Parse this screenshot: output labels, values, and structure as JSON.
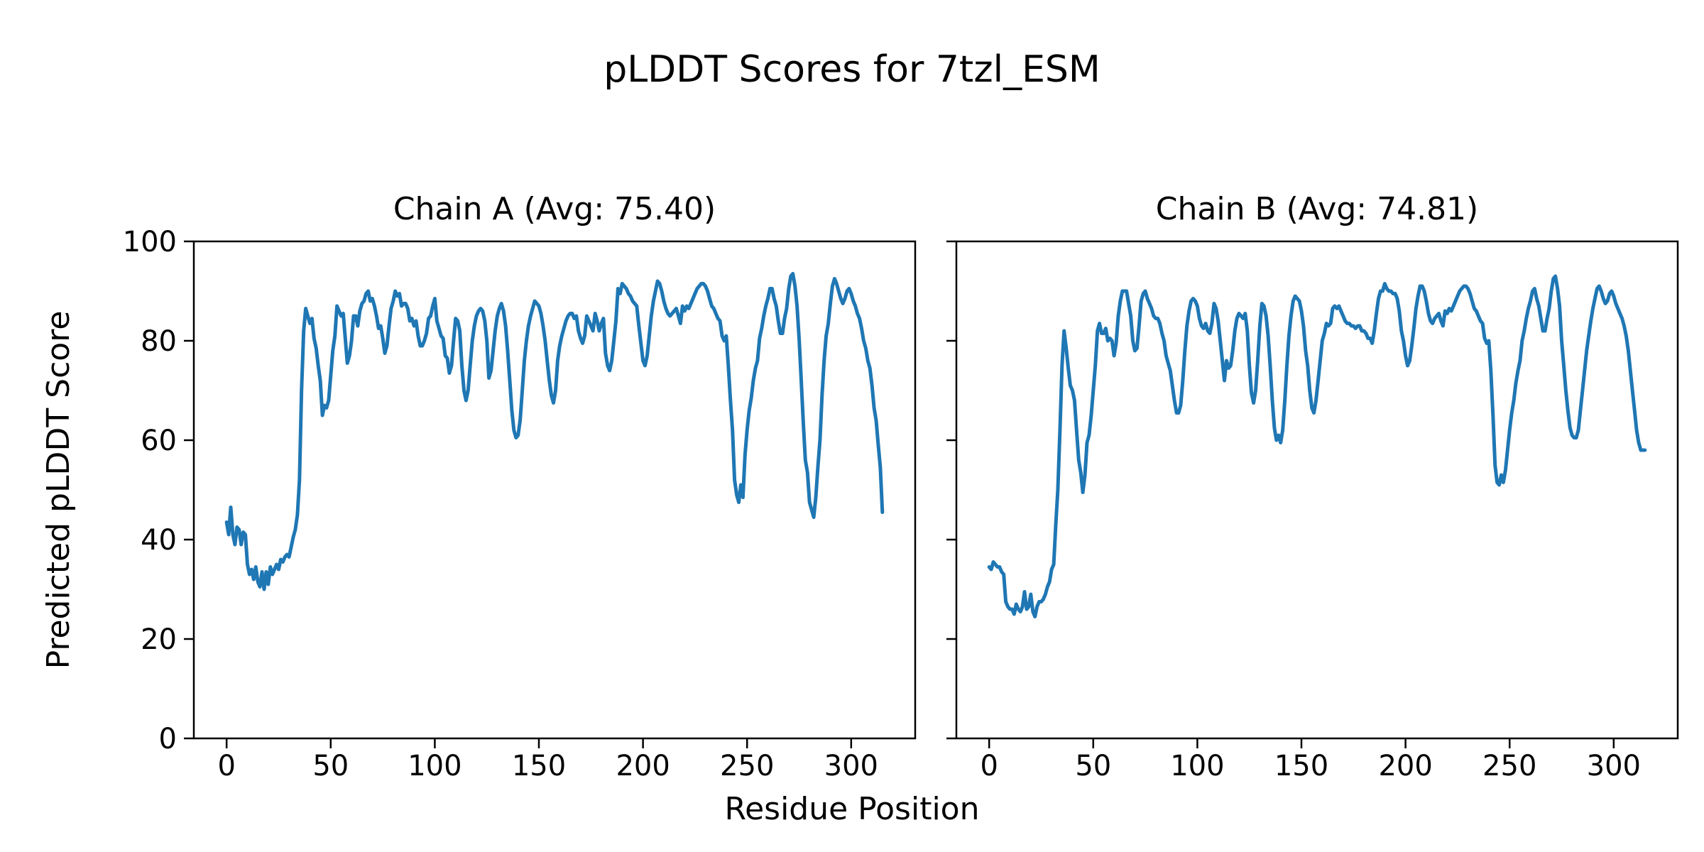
{
  "figure": {
    "suptitle": "pLDDT Scores for 7tzl_ESM",
    "xlabel": "Residue Position",
    "ylabel": "Predicted pLDDT Score",
    "background_color": "#ffffff",
    "line_color": "#1f77b4"
  },
  "chart_data": [
    {
      "type": "line",
      "title": "Chain A (Avg: 75.40)",
      "avg": 75.4,
      "x_start": 0,
      "x_step": 1,
      "x_ticks": [
        0,
        50,
        100,
        150,
        200,
        250,
        300
      ],
      "y_ticks": [
        0,
        20,
        40,
        60,
        80,
        100
      ],
      "xlim": [
        -15.75,
        330.75
      ],
      "ylim": [
        0,
        100
      ],
      "grid": false,
      "values": [
        43.5,
        41,
        46.5,
        41,
        39,
        42.5,
        42,
        39,
        41.5,
        41,
        35,
        33,
        34,
        32,
        34.5,
        31.5,
        30.5,
        33.5,
        30,
        33.5,
        31,
        34.5,
        33,
        34,
        35,
        34,
        36,
        35.5,
        36.5,
        37,
        36.5,
        38.5,
        40.5,
        42,
        45,
        52,
        70,
        82,
        86.5,
        85,
        83.5,
        84.5,
        80.5,
        78.5,
        75,
        72,
        65,
        67,
        66.5,
        68,
        73,
        78,
        81,
        87,
        86,
        85,
        85.5,
        80.5,
        75.5,
        77,
        80,
        85,
        85,
        83,
        86,
        87.5,
        88,
        89.5,
        90,
        88,
        88.5,
        87,
        85,
        82.5,
        83,
        80.5,
        77.5,
        79,
        83,
        86.5,
        88,
        90,
        89,
        89.5,
        87,
        87.5,
        87.5,
        86.5,
        84,
        84.5,
        83,
        84,
        81,
        79,
        79,
        80,
        81.5,
        84.5,
        85,
        87,
        88.5,
        84,
        82.5,
        81,
        80.5,
        77,
        76.5,
        73.5,
        75,
        80,
        84.5,
        84,
        82,
        75,
        70,
        68,
        70,
        75,
        80,
        83,
        85,
        86,
        86.5,
        86,
        84,
        80,
        72.5,
        74,
        78,
        82,
        85,
        86.5,
        87.5,
        86,
        83,
        78,
        72,
        66,
        62,
        60.5,
        61,
        64,
        70,
        76,
        80,
        83,
        85,
        86.5,
        88,
        87.5,
        87,
        85.5,
        83,
        80,
        76,
        72,
        69,
        67.5,
        70,
        76,
        79,
        81,
        82.5,
        84,
        85,
        85.5,
        85.5,
        84.5,
        85,
        82,
        80.5,
        79.5,
        81,
        85,
        84,
        83,
        82,
        85.5,
        84,
        82,
        83.5,
        84.5,
        77.5,
        75,
        74,
        76,
        80,
        84,
        90.5,
        89.5,
        91.5,
        91,
        90.5,
        89.5,
        89,
        88,
        87.5,
        87,
        83,
        79.5,
        76,
        75,
        77,
        81,
        85,
        88,
        90,
        92,
        91.5,
        90,
        88,
        86.5,
        85.5,
        85,
        85.5,
        86,
        86.5,
        85,
        83.5,
        87,
        86,
        87,
        86.5,
        87.5,
        88.5,
        89.5,
        90.5,
        91,
        91.5,
        91.5,
        91,
        90,
        88.5,
        87,
        86.5,
        85.5,
        84.5,
        84,
        81,
        80,
        81,
        75,
        68,
        62,
        52,
        49,
        47.5,
        51,
        48.5,
        57,
        62,
        66,
        68.5,
        72,
        74.5,
        76,
        80.5,
        82.5,
        85,
        87,
        88.5,
        90.5,
        90.5,
        88.5,
        87,
        84,
        81.5,
        81.5,
        84.5,
        86.5,
        90.5,
        93,
        93.5,
        91,
        87,
        80.5,
        72,
        63.5,
        56,
        53.5,
        47.5,
        46,
        44.5,
        48.5,
        54.5,
        60,
        69,
        76,
        81,
        83.5,
        87.5,
        91,
        92.5,
        91.5,
        90,
        88.5,
        87.5,
        88.5,
        90,
        90.5,
        89.5,
        88,
        87,
        85.5,
        84.5,
        82.5,
        80,
        78.5,
        76,
        74.5,
        71,
        66.5,
        64,
        59,
        54.5,
        45.5
      ]
    },
    {
      "type": "line",
      "title": "Chain B (Avg: 74.81)",
      "avg": 74.81,
      "x_start": 0,
      "x_step": 1,
      "x_ticks": [
        0,
        50,
        100,
        150,
        200,
        250,
        300
      ],
      "y_ticks": [
        0,
        20,
        40,
        60,
        80,
        100
      ],
      "xlim": [
        -15.75,
        330.75
      ],
      "ylim": [
        0,
        100
      ],
      "grid": false,
      "values": [
        34.5,
        34,
        35.5,
        35,
        34.5,
        34.5,
        33.5,
        33,
        27.5,
        26.5,
        26,
        26,
        25,
        27,
        26,
        25.5,
        26.5,
        29.5,
        26,
        26.5,
        29,
        25.5,
        24.5,
        26.5,
        27.5,
        27.5,
        28,
        29,
        30.5,
        31.5,
        34,
        35,
        43,
        50,
        62,
        75,
        82,
        78.5,
        74.5,
        71,
        70,
        68,
        62,
        56,
        53.5,
        49.5,
        53,
        59.5,
        61,
        65,
        70,
        75,
        82,
        83.5,
        81.5,
        81.5,
        82.5,
        80,
        80.5,
        80,
        77,
        79.5,
        85,
        88,
        90,
        90,
        90,
        87.5,
        85,
        80,
        78,
        78.5,
        83,
        88,
        89.5,
        90,
        88.5,
        87.5,
        86.5,
        85,
        84.5,
        84.5,
        83.5,
        81.5,
        80,
        77,
        75.5,
        74,
        71,
        68,
        65.5,
        65.5,
        67,
        72,
        78,
        83,
        86,
        88,
        88.5,
        88,
        87,
        84.5,
        83,
        82.5,
        83.5,
        82,
        81.5,
        83.5,
        87.5,
        86.5,
        84,
        80,
        76,
        72,
        76,
        74.5,
        75,
        78,
        82,
        84.5,
        85.5,
        85,
        84.5,
        85.5,
        82,
        75,
        69.5,
        67.5,
        70,
        76,
        83,
        87.5,
        87,
        85,
        81,
        75,
        68,
        62.5,
        60,
        61,
        59.5,
        62,
        68,
        75,
        81,
        85,
        88,
        89,
        88.5,
        88,
        86,
        83,
        78,
        75,
        70,
        66.5,
        65.5,
        68,
        72,
        76,
        80,
        81.5,
        83.5,
        83,
        83.5,
        86.5,
        87,
        86.5,
        87,
        86,
        85,
        84,
        83.5,
        83.5,
        83,
        83,
        82.5,
        83,
        83,
        82,
        82,
        81.5,
        80.5,
        80.5,
        79.5,
        82,
        85.5,
        88.5,
        90,
        90,
        91.5,
        90.5,
        90,
        90,
        89.5,
        89.5,
        88.5,
        86,
        82,
        80,
        77,
        75,
        76,
        79,
        82.5,
        86.5,
        89,
        91,
        91,
        90,
        88,
        85.5,
        84,
        83.5,
        84.5,
        85,
        85.5,
        84,
        83,
        86,
        85.5,
        86.5,
        86,
        87,
        88,
        89,
        90,
        90.5,
        91,
        91,
        90.5,
        89.5,
        88,
        86.5,
        86,
        85,
        84,
        83.5,
        80.5,
        79.5,
        80,
        74,
        65,
        55,
        51.5,
        51,
        53,
        51.5,
        54,
        58,
        62,
        65.5,
        68,
        71.5,
        74,
        76,
        80,
        82,
        84.5,
        86.5,
        88,
        90,
        90.5,
        88.5,
        87,
        84.5,
        82,
        82,
        84.5,
        86.5,
        90,
        92.5,
        93,
        90.5,
        87,
        80,
        75,
        70,
        66,
        62.5,
        61,
        60.5,
        60.5,
        62,
        66,
        70,
        74,
        78,
        81,
        84,
        86.5,
        88.5,
        90.5,
        91,
        90,
        88.5,
        87.5,
        88,
        89.5,
        90,
        89,
        87.5,
        86.5,
        85.5,
        84.5,
        83,
        81,
        78,
        74,
        70,
        66,
        62,
        59.5,
        58,
        58,
        58
      ]
    }
  ]
}
